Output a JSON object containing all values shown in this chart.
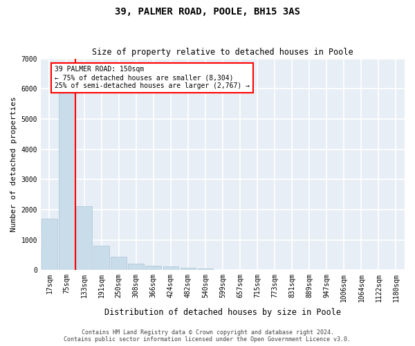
{
  "title1": "39, PALMER ROAD, POOLE, BH15 3AS",
  "title2": "Size of property relative to detached houses in Poole",
  "xlabel": "Distribution of detached houses by size in Poole",
  "ylabel": "Number of detached properties",
  "footer1": "Contains HM Land Registry data © Crown copyright and database right 2024.",
  "footer2": "Contains public sector information licensed under the Open Government Licence v3.0.",
  "bar_color": "#c9dcea",
  "bar_edgecolor": "#a8c4d8",
  "categories": [
    "17sqm",
    "75sqm",
    "133sqm",
    "191sqm",
    "250sqm",
    "308sqm",
    "366sqm",
    "424sqm",
    "482sqm",
    "540sqm",
    "599sqm",
    "657sqm",
    "715sqm",
    "773sqm",
    "831sqm",
    "889sqm",
    "947sqm",
    "1006sqm",
    "1064sqm",
    "1122sqm",
    "1180sqm"
  ],
  "values": [
    1700,
    5900,
    2100,
    800,
    450,
    220,
    150,
    110,
    80,
    50,
    0,
    0,
    0,
    0,
    0,
    0,
    0,
    0,
    0,
    0,
    0
  ],
  "ylim": [
    0,
    7000
  ],
  "yticks": [
    0,
    1000,
    2000,
    3000,
    4000,
    5000,
    6000,
    7000
  ],
  "annotation_line1": "39 PALMER ROAD: 150sqm",
  "annotation_line2": "← 75% of detached houses are smaller (8,304)",
  "annotation_line3": "25% of semi-detached houses are larger (2,767) →",
  "vline_bar_index": 1.5,
  "background_color": "#e8eef5",
  "grid_color": "#ffffff",
  "fig_width": 6.0,
  "fig_height": 5.0,
  "title1_fontsize": 10,
  "title2_fontsize": 8.5,
  "ylabel_fontsize": 8,
  "xlabel_fontsize": 8.5,
  "tick_fontsize": 7,
  "annotation_fontsize": 7,
  "footer_fontsize": 6
}
